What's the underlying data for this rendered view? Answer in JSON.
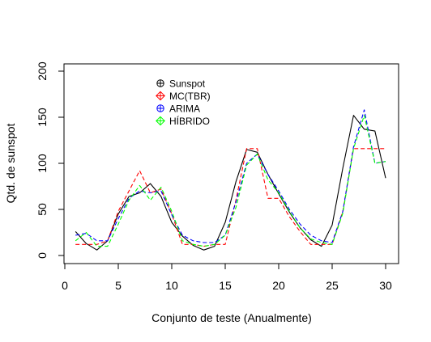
{
  "chart_data": {
    "type": "line",
    "title": "",
    "xlabel": "Conjunto de teste (Anualmente)",
    "ylabel": "Qtd. de sunspot",
    "xlim": [
      0,
      30
    ],
    "ylim": [
      0,
      200
    ],
    "xticks": [
      0,
      5,
      10,
      15,
      20,
      25,
      30
    ],
    "yticks": [
      0,
      50,
      100,
      150,
      200
    ],
    "grid": false,
    "legend_position": "top-left",
    "x": [
      1,
      2,
      3,
      4,
      5,
      6,
      7,
      8,
      9,
      10,
      11,
      12,
      13,
      14,
      15,
      16,
      17,
      18,
      19,
      20,
      21,
      22,
      23,
      24,
      25,
      26,
      27,
      28,
      29,
      30
    ],
    "series": [
      {
        "name": "Sunspot",
        "color": "#000000",
        "dash": "solid",
        "marker": "circle-plus",
        "values": [
          26,
          13,
          6,
          16,
          45,
          64,
          68,
          78,
          64,
          36,
          21,
          11,
          6,
          10,
          36,
          80,
          115,
          112,
          88,
          67,
          47,
          30,
          17,
          10,
          33,
          95,
          152,
          137,
          135,
          84
        ]
      },
      {
        "name": "MC(TBR)",
        "color": "#ff0000",
        "dash": "dashed",
        "marker": "diamond-plus",
        "values": [
          12,
          12,
          12,
          16,
          48,
          70,
          92,
          68,
          72,
          45,
          12,
          12,
          10,
          12,
          12,
          60,
          116,
          116,
          62,
          62,
          42,
          26,
          12,
          12,
          12,
          48,
          116,
          116,
          116,
          116
        ]
      },
      {
        "name": "ARIMA",
        "color": "#0000ff",
        "dash": "dashed",
        "marker": "circle-plus",
        "values": [
          22,
          24,
          16,
          16,
          40,
          62,
          70,
          68,
          70,
          44,
          22,
          16,
          14,
          14,
          22,
          58,
          100,
          110,
          88,
          70,
          50,
          34,
          22,
          16,
          14,
          48,
          118,
          158,
          100,
          102
        ]
      },
      {
        "name": "HÍBRIDO",
        "color": "#00ff00",
        "dash": "dashed",
        "marker": "diamond-plus",
        "values": [
          16,
          25,
          10,
          10,
          34,
          60,
          76,
          60,
          74,
          48,
          16,
          12,
          10,
          12,
          22,
          52,
          98,
          110,
          82,
          68,
          48,
          30,
          18,
          14,
          12,
          46,
          116,
          152,
          100,
          102
        ]
      }
    ]
  }
}
